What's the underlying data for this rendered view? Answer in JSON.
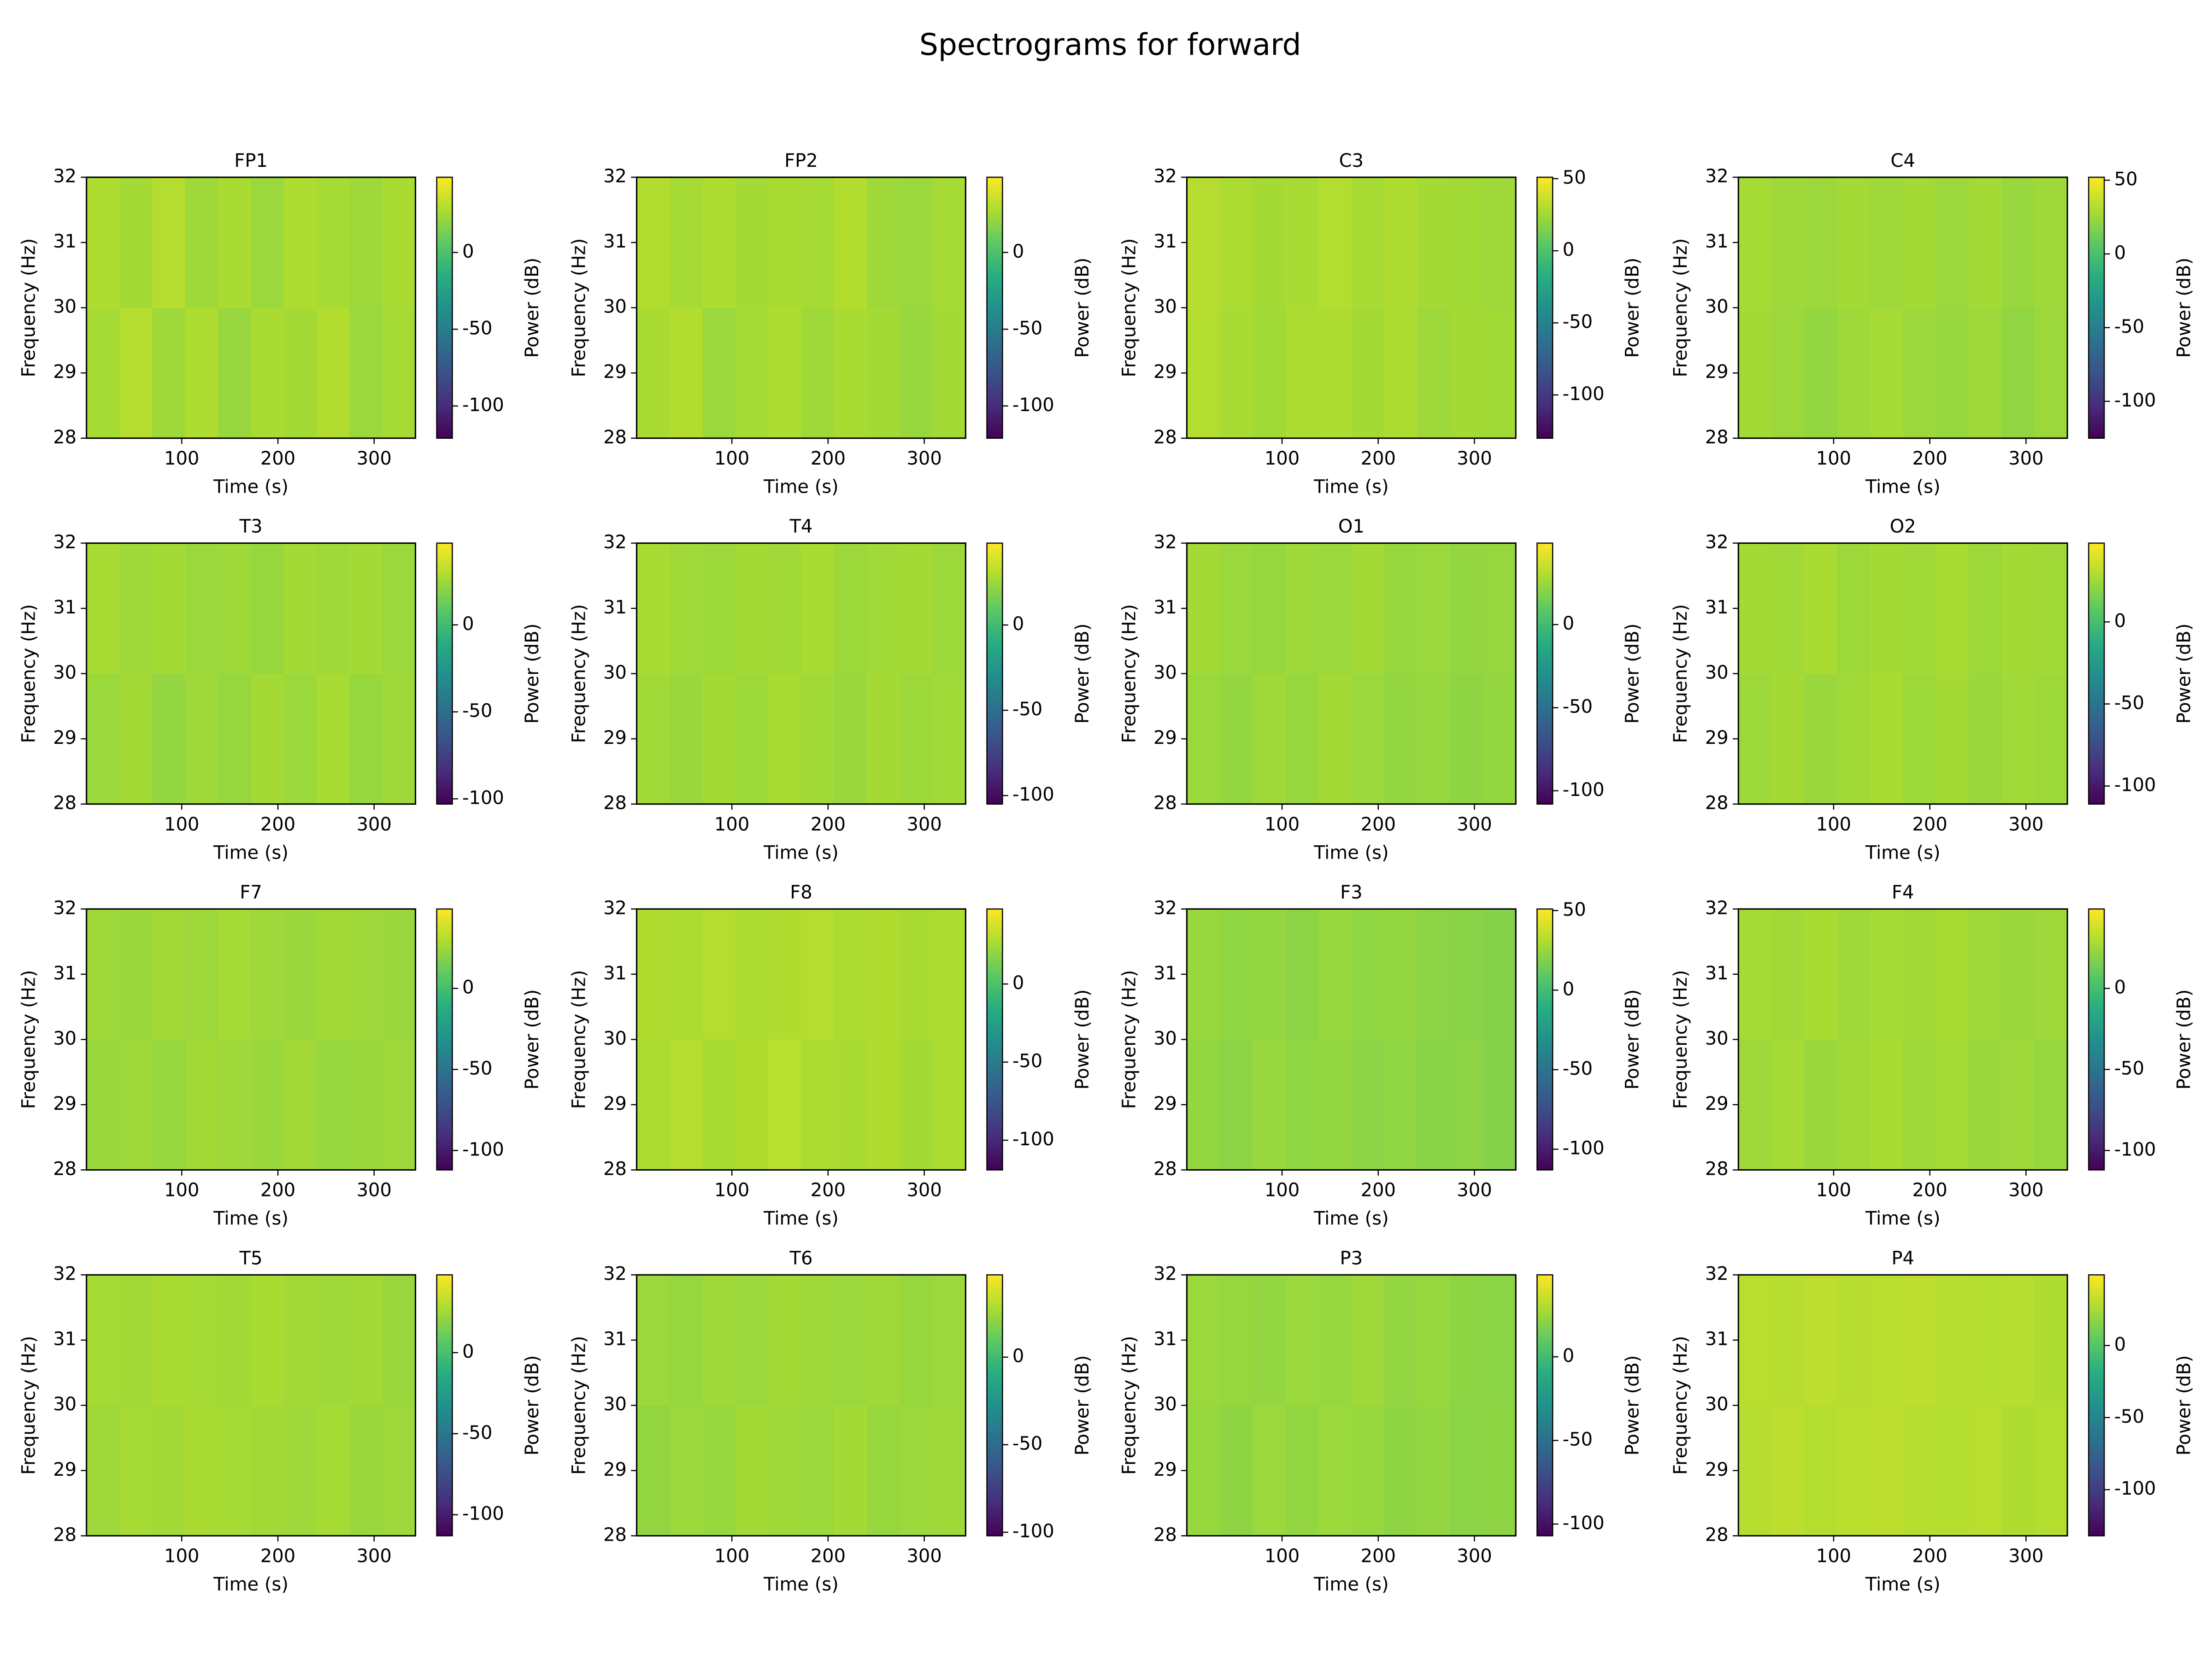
{
  "title": "Spectrograms for forward",
  "chart_data": [
    {
      "type": "heatmap",
      "title": "FP1",
      "xlabel": "Time (s)",
      "ylabel": "Frequency (Hz)",
      "colorbar_label": "Power (dB)",
      "colormap": "viridis",
      "xlim": [
        1,
        343
      ],
      "xticks": [
        100,
        200,
        300
      ],
      "ylim": [
        28,
        32
      ],
      "yticks": [
        28,
        29,
        30,
        31,
        32
      ],
      "clim": [
        -121,
        49
      ],
      "cticks": [
        -100,
        -50,
        0
      ],
      "values": [
        [
          26,
          30,
          24,
          28,
          22,
          27,
          25,
          29,
          23,
          26
        ],
        [
          28,
          25,
          30,
          24,
          27,
          23,
          28,
          26,
          24,
          27
        ]
      ]
    },
    {
      "type": "heatmap",
      "title": "FP2",
      "xlabel": "Time (s)",
      "ylabel": "Frequency (Hz)",
      "colorbar_label": "Power (dB)",
      "colormap": "viridis",
      "xlim": [
        1,
        343
      ],
      "xticks": [
        100,
        200,
        300
      ],
      "ylim": [
        28,
        32
      ],
      "yticks": [
        28,
        29,
        30,
        31,
        32
      ],
      "clim": [
        -121,
        49
      ],
      "cticks": [
        -100,
        -50,
        0
      ],
      "values": [
        [
          27,
          29,
          23,
          26,
          28,
          24,
          27,
          25,
          22,
          25
        ],
        [
          29,
          26,
          28,
          25,
          27,
          26,
          29,
          24,
          23,
          26
        ]
      ]
    },
    {
      "type": "heatmap",
      "title": "C3",
      "xlabel": "Time (s)",
      "ylabel": "Frequency (Hz)",
      "colorbar_label": "Power (dB)",
      "colormap": "viridis",
      "xlim": [
        1,
        343
      ],
      "xticks": [
        100,
        200,
        300
      ],
      "ylim": [
        28,
        32
      ],
      "yticks": [
        28,
        29,
        30,
        31,
        32
      ],
      "clim": [
        -130,
        51
      ],
      "cticks": [
        -100,
        -50,
        0,
        50
      ],
      "values": [
        [
          30,
          27,
          25,
          28,
          29,
          26,
          28,
          24,
          26,
          25
        ],
        [
          31,
          28,
          26,
          27,
          30,
          27,
          29,
          26,
          25,
          24
        ]
      ]
    },
    {
      "type": "heatmap",
      "title": "C4",
      "xlabel": "Time (s)",
      "ylabel": "Frequency (Hz)",
      "colorbar_label": "Power (dB)",
      "colormap": "viridis",
      "xlim": [
        1,
        343
      ],
      "xticks": [
        100,
        200,
        300
      ],
      "ylim": [
        28,
        32
      ],
      "yticks": [
        28,
        29,
        30,
        31,
        32
      ],
      "clim": [
        -125,
        52
      ],
      "cticks": [
        -100,
        -50,
        0,
        50
      ],
      "values": [
        [
          27,
          25,
          23,
          26,
          28,
          25,
          24,
          26,
          22,
          25
        ],
        [
          28,
          26,
          25,
          27,
          26,
          27,
          25,
          27,
          24,
          26
        ]
      ]
    },
    {
      "type": "heatmap",
      "title": "T3",
      "xlabel": "Time (s)",
      "ylabel": "Frequency (Hz)",
      "colorbar_label": "Power (dB)",
      "colormap": "viridis",
      "xlim": [
        1,
        343
      ],
      "xticks": [
        100,
        200,
        300
      ],
      "ylim": [
        28,
        32
      ],
      "yticks": [
        28,
        29,
        30,
        31,
        32
      ],
      "clim": [
        -103,
        47
      ],
      "cticks": [
        -100,
        -50,
        0
      ],
      "values": [
        [
          24,
          26,
          22,
          25,
          23,
          26,
          24,
          27,
          23,
          25
        ],
        [
          27,
          25,
          26,
          24,
          25,
          23,
          26,
          25,
          26,
          24
        ]
      ]
    },
    {
      "type": "heatmap",
      "title": "T4",
      "xlabel": "Time (s)",
      "ylabel": "Frequency (Hz)",
      "colorbar_label": "Power (dB)",
      "colormap": "viridis",
      "xlim": [
        1,
        343
      ],
      "xticks": [
        100,
        200,
        300
      ],
      "ylim": [
        28,
        32
      ],
      "yticks": [
        28,
        29,
        30,
        31,
        32
      ],
      "clim": [
        -105,
        48
      ],
      "cticks": [
        -100,
        -50,
        0
      ],
      "values": [
        [
          26,
          24,
          27,
          25,
          28,
          26,
          24,
          27,
          25,
          26
        ],
        [
          28,
          26,
          25,
          27,
          26,
          28,
          25,
          26,
          27,
          25
        ]
      ]
    },
    {
      "type": "heatmap",
      "title": "O1",
      "xlabel": "Time (s)",
      "ylabel": "Frequency (Hz)",
      "colorbar_label": "Power (dB)",
      "colormap": "viridis",
      "xlim": [
        1,
        343
      ],
      "xticks": [
        100,
        200,
        300
      ],
      "ylim": [
        28,
        32
      ],
      "yticks": [
        28,
        29,
        30,
        31,
        32
      ],
      "clim": [
        -108,
        49
      ],
      "cticks": [
        -100,
        -50,
        0
      ],
      "values": [
        [
          25,
          23,
          26,
          24,
          27,
          25,
          23,
          24,
          22,
          23
        ],
        [
          27,
          25,
          24,
          26,
          25,
          27,
          24,
          25,
          23,
          24
        ]
      ]
    },
    {
      "type": "heatmap",
      "title": "O2",
      "xlabel": "Time (s)",
      "ylabel": "Frequency (Hz)",
      "colorbar_label": "Power (dB)",
      "colormap": "viridis",
      "xlim": [
        1,
        343
      ],
      "xticks": [
        100,
        200,
        300
      ],
      "ylim": [
        28,
        32
      ],
      "yticks": [
        28,
        29,
        30,
        31,
        32
      ],
      "clim": [
        -111,
        48
      ],
      "cticks": [
        -100,
        -50,
        0
      ],
      "values": [
        [
          24,
          26,
          23,
          25,
          27,
          24,
          26,
          23,
          25,
          24
        ],
        [
          26,
          25,
          27,
          24,
          26,
          25,
          27,
          24,
          26,
          25
        ]
      ]
    },
    {
      "type": "heatmap",
      "title": "F7",
      "xlabel": "Time (s)",
      "ylabel": "Frequency (Hz)",
      "colorbar_label": "Power (dB)",
      "colormap": "viridis",
      "xlim": [
        1,
        343
      ],
      "xticks": [
        100,
        200,
        300
      ],
      "ylim": [
        28,
        32
      ],
      "yticks": [
        28,
        29,
        30,
        31,
        32
      ],
      "clim": [
        -112,
        49
      ],
      "cticks": [
        -100,
        -50,
        0
      ],
      "values": [
        [
          24,
          25,
          23,
          26,
          25,
          24,
          26,
          23,
          24,
          25
        ],
        [
          25,
          24,
          26,
          25,
          27,
          25,
          24,
          26,
          25,
          24
        ]
      ]
    },
    {
      "type": "heatmap",
      "title": "F8",
      "xlabel": "Time (s)",
      "ylabel": "Frequency (Hz)",
      "colorbar_label": "Power (dB)",
      "colormap": "viridis",
      "xlim": [
        1,
        343
      ],
      "xticks": [
        100,
        200,
        300
      ],
      "ylim": [
        28,
        32
      ],
      "yticks": [
        28,
        29,
        30,
        31,
        32
      ],
      "clim": [
        -119,
        48
      ],
      "cticks": [
        -100,
        -50,
        0
      ],
      "values": [
        [
          27,
          29,
          26,
          28,
          30,
          27,
          26,
          28,
          25,
          27
        ],
        [
          28,
          27,
          29,
          27,
          28,
          29,
          27,
          28,
          26,
          27
        ]
      ]
    },
    {
      "type": "heatmap",
      "title": "F3",
      "xlabel": "Time (s)",
      "ylabel": "Frequency (Hz)",
      "colorbar_label": "Power (dB)",
      "colormap": "viridis",
      "xlim": [
        1,
        343
      ],
      "xticks": [
        100,
        200,
        300
      ],
      "ylim": [
        28,
        32
      ],
      "yticks": [
        28,
        29,
        30,
        31,
        32
      ],
      "clim": [
        -113,
        51
      ],
      "cticks": [
        -100,
        -50,
        0,
        50
      ],
      "values": [
        [
          24,
          22,
          25,
          23,
          24,
          22,
          23,
          21,
          22,
          20
        ],
        [
          25,
          23,
          24,
          22,
          25,
          23,
          24,
          22,
          21,
          20
        ]
      ]
    },
    {
      "type": "heatmap",
      "title": "F4",
      "xlabel": "Time (s)",
      "ylabel": "Frequency (Hz)",
      "colorbar_label": "Power (dB)",
      "colormap": "viridis",
      "xlim": [
        1,
        343
      ],
      "xticks": [
        100,
        200,
        300
      ],
      "ylim": [
        28,
        32
      ],
      "yticks": [
        28,
        29,
        30,
        31,
        32
      ],
      "clim": [
        -112,
        49
      ],
      "cticks": [
        -100,
        -50,
        0
      ],
      "values": [
        [
          25,
          27,
          24,
          26,
          28,
          25,
          27,
          24,
          25,
          23
        ],
        [
          27,
          26,
          28,
          25,
          27,
          26,
          28,
          25,
          24,
          25
        ]
      ]
    },
    {
      "type": "heatmap",
      "title": "T5",
      "xlabel": "Time (s)",
      "ylabel": "Frequency (Hz)",
      "colorbar_label": "Power (dB)",
      "colormap": "viridis",
      "xlim": [
        1,
        343
      ],
      "xticks": [
        100,
        200,
        300
      ],
      "ylim": [
        28,
        32
      ],
      "yticks": [
        28,
        29,
        30,
        31,
        32
      ],
      "clim": [
        -113,
        48
      ],
      "cticks": [
        -100,
        -50,
        0
      ],
      "values": [
        [
          24,
          26,
          25,
          27,
          26,
          25,
          24,
          26,
          23,
          24
        ],
        [
          26,
          25,
          27,
          26,
          25,
          27,
          25,
          24,
          25,
          23
        ]
      ]
    },
    {
      "type": "heatmap",
      "title": "T6",
      "xlabel": "Time (s)",
      "ylabel": "Frequency (Hz)",
      "colorbar_label": "Power (dB)",
      "colormap": "viridis",
      "xlim": [
        1,
        343
      ],
      "xticks": [
        100,
        200,
        300
      ],
      "ylim": [
        28,
        32
      ],
      "yticks": [
        28,
        29,
        30,
        31,
        32
      ],
      "clim": [
        -102,
        47
      ],
      "cticks": [
        -100,
        -50,
        0
      ],
      "values": [
        [
          22,
          24,
          23,
          26,
          25,
          24,
          26,
          23,
          24,
          25
        ],
        [
          24,
          23,
          25,
          24,
          26,
          25,
          24,
          25,
          23,
          24
        ]
      ]
    },
    {
      "type": "heatmap",
      "title": "P3",
      "xlabel": "Time (s)",
      "ylabel": "Frequency (Hz)",
      "colorbar_label": "Power (dB)",
      "colormap": "viridis",
      "xlim": [
        1,
        343
      ],
      "xticks": [
        100,
        200,
        300
      ],
      "ylim": [
        28,
        32
      ],
      "yticks": [
        28,
        29,
        30,
        31,
        32
      ],
      "clim": [
        -107,
        49
      ],
      "cticks": [
        -100,
        -50,
        0
      ],
      "values": [
        [
          24,
          22,
          25,
          23,
          25,
          24,
          22,
          23,
          21,
          22
        ],
        [
          25,
          24,
          23,
          25,
          24,
          26,
          23,
          24,
          22,
          21
        ]
      ]
    },
    {
      "type": "heatmap",
      "title": "P4",
      "xlabel": "Time (s)",
      "ylabel": "Frequency (Hz)",
      "colorbar_label": "Power (dB)",
      "colormap": "viridis",
      "xlim": [
        1,
        343
      ],
      "xticks": [
        100,
        200,
        300
      ],
      "ylim": [
        28,
        32
      ],
      "yticks": [
        28,
        29,
        30,
        31,
        32
      ],
      "clim": [
        -132,
        49
      ],
      "cticks": [
        -100,
        -50,
        0
      ],
      "values": [
        [
          29,
          31,
          28,
          30,
          31,
          29,
          28,
          30,
          27,
          28
        ],
        [
          30,
          29,
          31,
          29,
          30,
          31,
          29,
          28,
          29,
          27
        ]
      ]
    }
  ]
}
